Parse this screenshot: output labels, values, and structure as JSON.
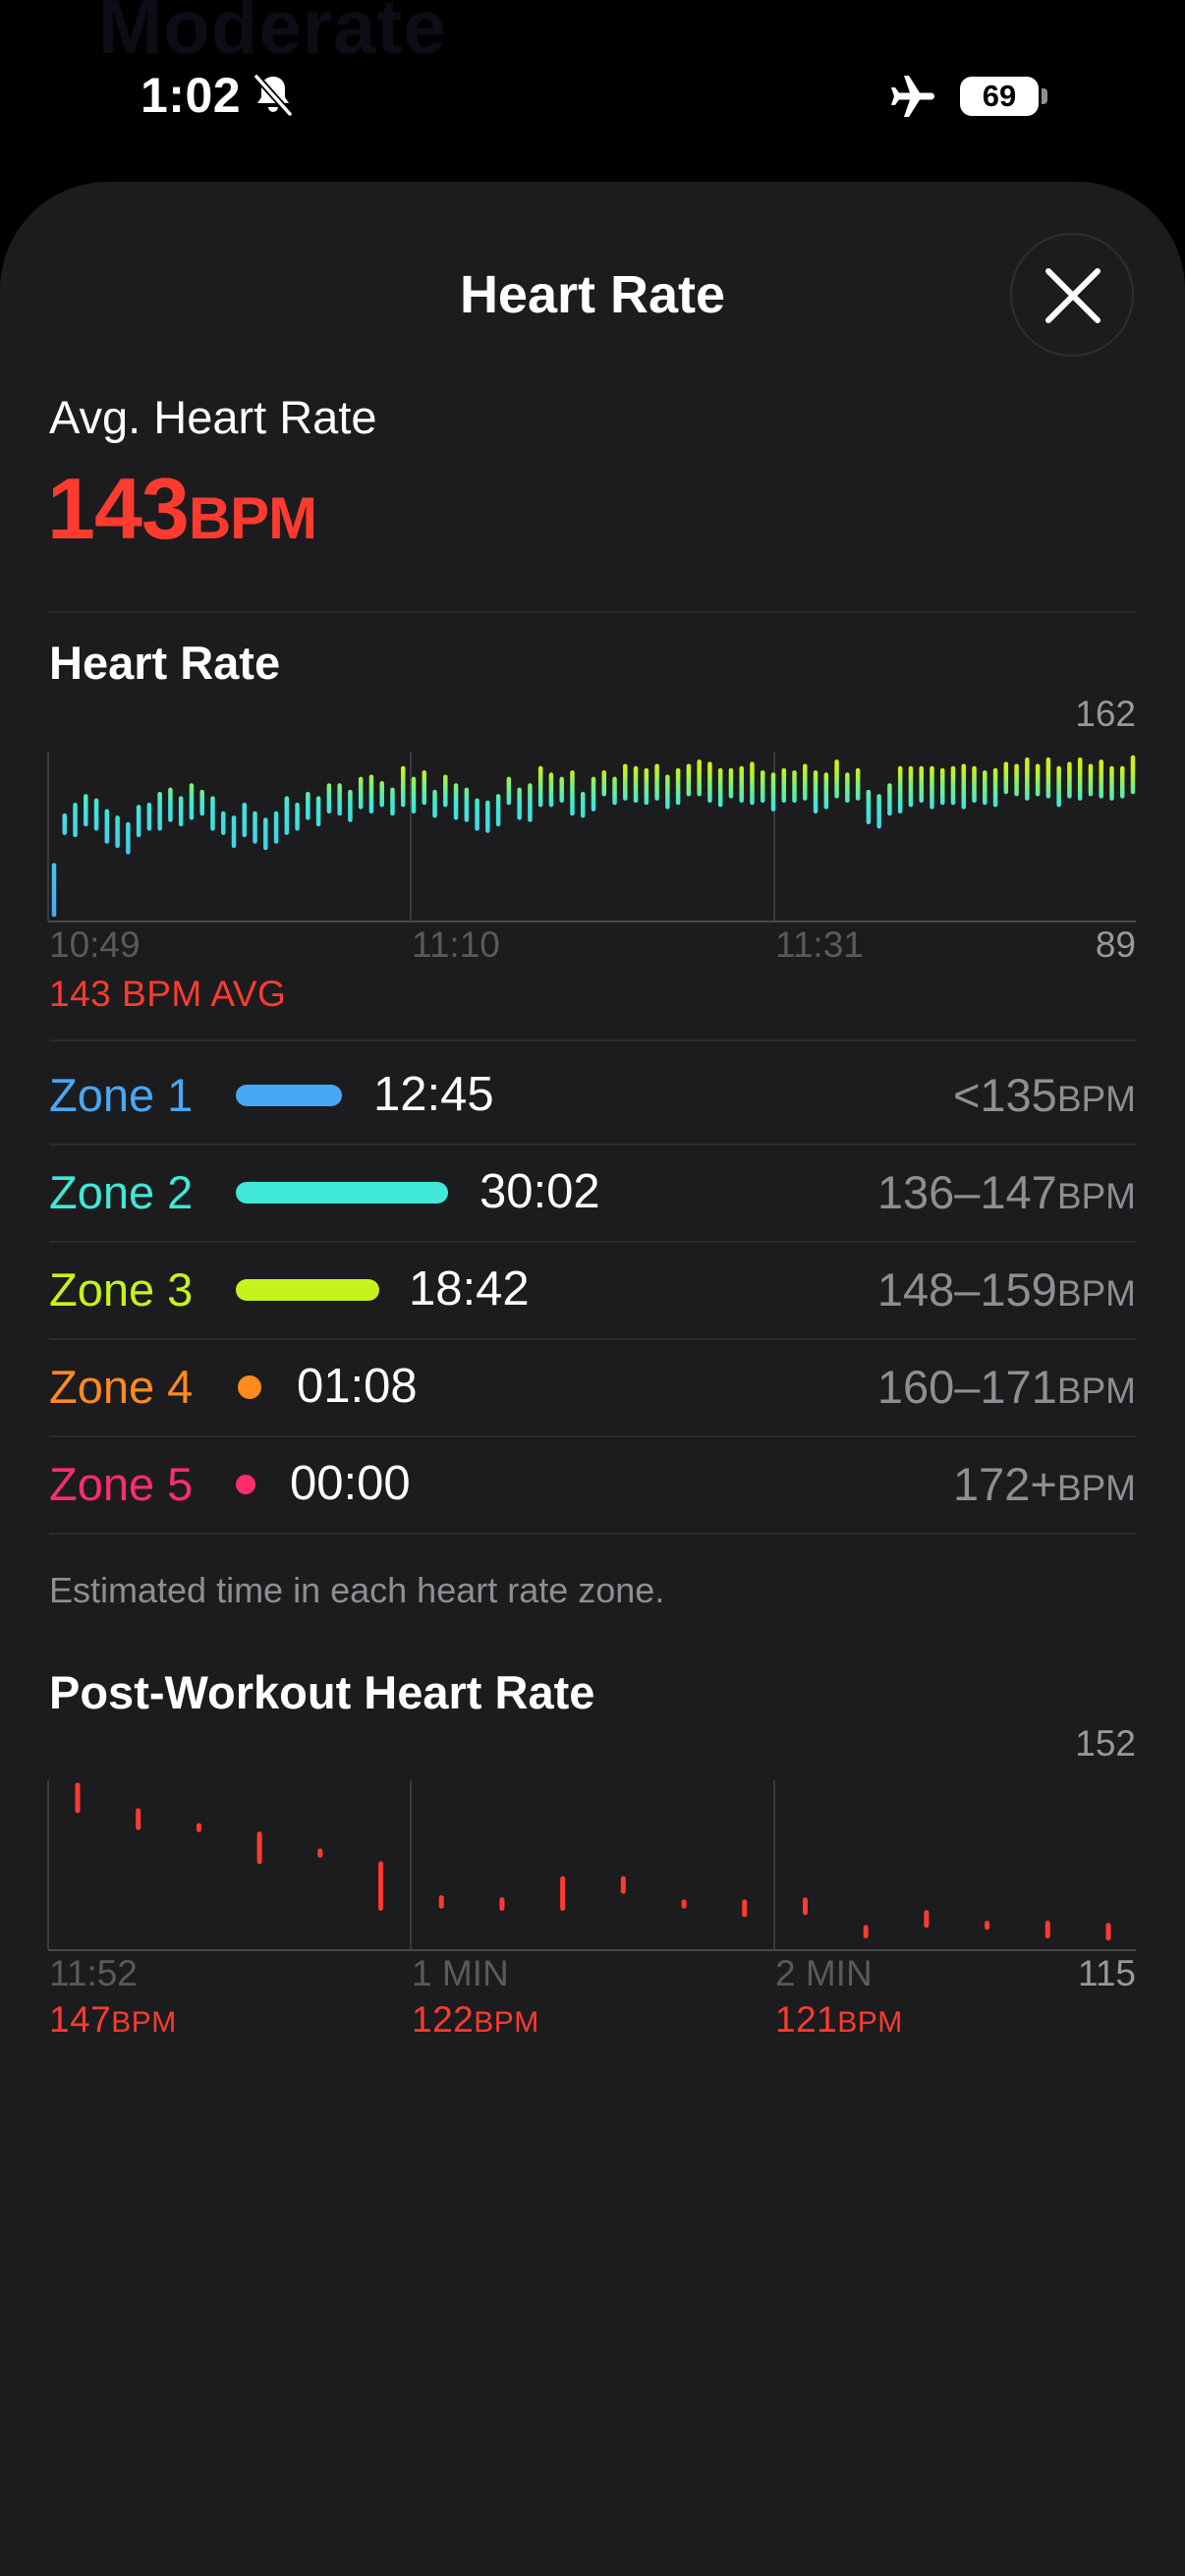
{
  "status_bar": {
    "time": "1:02",
    "battery": "69",
    "background_text": "Moderate"
  },
  "sheet": {
    "title": "Heart Rate"
  },
  "average": {
    "label": "Avg. Heart Rate",
    "value": "143",
    "unit": "BPM"
  },
  "heart_rate_chart": {
    "title": "Heart Rate",
    "y_max_label": "162",
    "y_min_label": "89",
    "tick_labels": [
      "10:49",
      "11:10",
      "11:31"
    ],
    "avg_label": "143 BPM AVG"
  },
  "zones": [
    {
      "name": "Zone 1",
      "time": "12:45",
      "range": "<135",
      "unit": "BPM",
      "color": "#48a8f5"
    },
    {
      "name": "Zone 2",
      "time": "30:02",
      "range": "136–147",
      "unit": "BPM",
      "color": "#3fe8d8"
    },
    {
      "name": "Zone 3",
      "time": "18:42",
      "range": "148–159",
      "unit": "BPM",
      "color": "#c7f31c"
    },
    {
      "name": "Zone 4",
      "time": "01:08",
      "range": "160–171",
      "unit": "BPM",
      "color": "#ff8a1e"
    },
    {
      "name": "Zone 5",
      "time": "00:00",
      "range": "172+",
      "unit": "BPM",
      "color": "#ff2d6e"
    }
  ],
  "zones_footnote": "Estimated time in each heart rate zone.",
  "post_workout": {
    "title": "Post-Workout Heart Rate",
    "y_max_label": "152",
    "y_min_label": "115",
    "tick_labels": [
      "11:52",
      "1 MIN",
      "2 MIN"
    ],
    "readings": [
      {
        "value": "147",
        "unit": "BPM"
      },
      {
        "value": "122",
        "unit": "BPM"
      },
      {
        "value": "121",
        "unit": "BPM"
      }
    ]
  },
  "chart_data": [
    {
      "type": "range-bar",
      "title": "Heart Rate",
      "ylim": [
        89,
        162
      ],
      "x_ticks": [
        "10:49",
        "11:10",
        "11:31"
      ],
      "average": 143,
      "series": [
        {
          "ranges": [
            [
              89,
              112
            ],
            [
              127,
              135
            ],
            [
              126,
              140
            ],
            [
              131,
              144
            ],
            [
              129,
              142
            ],
            [
              123,
              137
            ],
            [
              121,
              134
            ],
            [
              118,
              131
            ],
            [
              126,
              139
            ],
            [
              129,
              140
            ],
            [
              129,
              145
            ],
            [
              133,
              147
            ],
            [
              131,
              143
            ],
            [
              134,
              149
            ],
            [
              136,
              146
            ],
            [
              129,
              143
            ],
            [
              127,
              136
            ],
            [
              121,
              134
            ],
            [
              126,
              140
            ],
            [
              123,
              136
            ],
            [
              120,
              133
            ],
            [
              123,
              136
            ],
            [
              127,
              143
            ],
            [
              129,
              140
            ],
            [
              134,
              145
            ],
            [
              131,
              143
            ],
            [
              137,
              149
            ],
            [
              136,
              149
            ],
            [
              133,
              146
            ],
            [
              139,
              152
            ],
            [
              137,
              153
            ],
            [
              140,
              150
            ],
            [
              136,
              147
            ],
            [
              140,
              157
            ],
            [
              137,
              152
            ],
            [
              141,
              155
            ],
            [
              135,
              146
            ],
            [
              140,
              153
            ],
            [
              134,
              149
            ],
            [
              133,
              147
            ],
            [
              129,
              142
            ],
            [
              128,
              141
            ],
            [
              131,
              144
            ],
            [
              141,
              152
            ],
            [
              134,
              147
            ],
            [
              133,
              149
            ],
            [
              140,
              157
            ],
            [
              140,
              154
            ],
            [
              142,
              152
            ],
            [
              136,
              155
            ],
            [
              135,
              145
            ],
            [
              138,
              152
            ],
            [
              145,
              155
            ],
            [
              141,
              152
            ],
            [
              143,
              158
            ],
            [
              142,
              157
            ],
            [
              141,
              156
            ],
            [
              143,
              158
            ],
            [
              139,
              153
            ],
            [
              141,
              156
            ],
            [
              145,
              158
            ],
            [
              145,
              160
            ],
            [
              142,
              159
            ],
            [
              140,
              156
            ],
            [
              144,
              156
            ],
            [
              142,
              157
            ],
            [
              141,
              159
            ],
            [
              142,
              155
            ],
            [
              138,
              154
            ],
            [
              142,
              156
            ],
            [
              142,
              155
            ],
            [
              143,
              158
            ],
            [
              137,
              155
            ],
            [
              139,
              154
            ],
            [
              144,
              160
            ],
            [
              142,
              154
            ],
            [
              143,
              156
            ],
            [
              132,
              146
            ],
            [
              130,
              144
            ],
            [
              136,
              149
            ],
            [
              137,
              157
            ],
            [
              140,
              157
            ],
            [
              142,
              157
            ],
            [
              139,
              157
            ],
            [
              141,
              156
            ],
            [
              141,
              157
            ],
            [
              139,
              158
            ],
            [
              142,
              157
            ],
            [
              141,
              155
            ],
            [
              140,
              156
            ],
            [
              146,
              159
            ],
            [
              145,
              158
            ],
            [
              143,
              161
            ],
            [
              145,
              158
            ],
            [
              144,
              161
            ],
            [
              140,
              157
            ],
            [
              144,
              159
            ],
            [
              143,
              161
            ],
            [
              145,
              158
            ],
            [
              144,
              160
            ],
            [
              143,
              157
            ],
            [
              144,
              157
            ],
            [
              146,
              162
            ]
          ]
        }
      ]
    },
    {
      "type": "range-bar",
      "title": "Post-Workout Heart Rate",
      "ylim": [
        115,
        152
      ],
      "x_ticks": [
        "11:52",
        "1 MIN",
        "2 MIN"
      ],
      "series": [
        {
          "ranges": [
            [
              146,
              152
            ],
            [
              142,
              146
            ],
            [
              141.5,
              142.5
            ],
            [
              134,
              140.5
            ],
            [
              135.5,
              136.5
            ],
            [
              123,
              133.5
            ],
            [
              123.5,
              125.5
            ],
            [
              123,
              125
            ],
            [
              123,
              130
            ],
            [
              127,
              130
            ],
            [
              123.5,
              124.5
            ],
            [
              121.5,
              124.5
            ],
            [
              122,
              125
            ],
            [
              116.5,
              118.5
            ],
            [
              119,
              122
            ],
            [
              118.5,
              119.5
            ],
            [
              116.5,
              119.5
            ],
            [
              116,
              119
            ]
          ]
        }
      ]
    }
  ]
}
